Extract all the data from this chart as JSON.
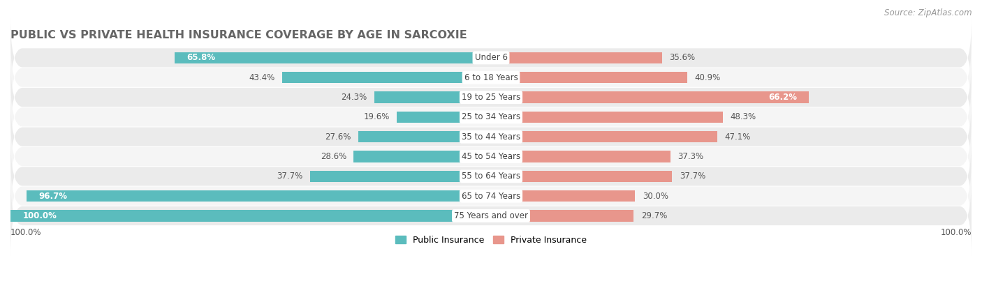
{
  "title": "PUBLIC VS PRIVATE HEALTH INSURANCE COVERAGE BY AGE IN SARCOXIE",
  "source": "Source: ZipAtlas.com",
  "categories": [
    "Under 6",
    "6 to 18 Years",
    "19 to 25 Years",
    "25 to 34 Years",
    "35 to 44 Years",
    "45 to 54 Years",
    "55 to 64 Years",
    "65 to 74 Years",
    "75 Years and over"
  ],
  "public_values": [
    65.8,
    43.4,
    24.3,
    19.6,
    27.6,
    28.6,
    37.7,
    96.7,
    100.0
  ],
  "private_values": [
    35.6,
    40.9,
    66.2,
    48.3,
    47.1,
    37.3,
    37.7,
    30.0,
    29.7
  ],
  "public_color": "#5bbcbd",
  "private_color": "#e8968c",
  "public_label": "Public Insurance",
  "private_label": "Private Insurance",
  "bar_height": 0.58,
  "x_max": 100.0,
  "title_fontsize": 11.5,
  "label_fontsize": 8.5,
  "source_fontsize": 8.5,
  "category_fontsize": 8.5,
  "row_bg_odd": "#f5f5f5",
  "row_bg_even": "#ebebeb"
}
